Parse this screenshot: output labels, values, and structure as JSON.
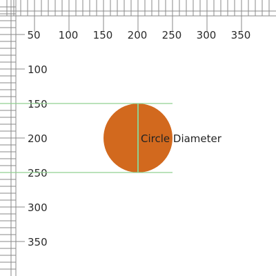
{
  "ruler": {
    "labels": [
      "50",
      "100",
      "150",
      "200",
      "250",
      "300",
      "350"
    ],
    "line_color": "#888888"
  },
  "diagram": {
    "annotation_label": "Circle Diameter",
    "circle_color": "#d2691e",
    "guide_color": "#90d090"
  }
}
